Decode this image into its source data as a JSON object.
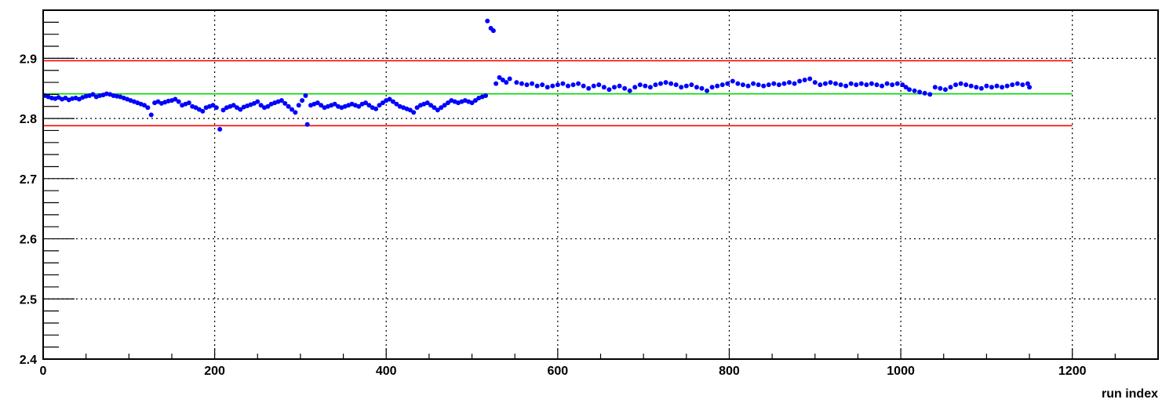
{
  "chart_data": {
    "type": "scatter",
    "title": "",
    "xlabel": "run index",
    "ylabel": "",
    "xlim": [
      0,
      1300
    ],
    "ylim": [
      2.4,
      2.98
    ],
    "x_ticks": [
      0,
      200,
      400,
      600,
      800,
      1000,
      1200
    ],
    "y_ticks": [
      2.4,
      2.5,
      2.6,
      2.7,
      2.8,
      2.9
    ],
    "y_tick_labels": [
      "2.4",
      "2.5",
      "2.6",
      "2.7",
      "2.8",
      "2.9"
    ],
    "x_tick_labels": [
      "0",
      "200",
      "400",
      "600",
      "800",
      "1000",
      "1200"
    ],
    "grid": true,
    "reference_lines": [
      {
        "y": 2.896,
        "x_range": [
          0,
          1200
        ],
        "color": "#ff0000"
      },
      {
        "y": 2.841,
        "x_range": [
          0,
          1200
        ],
        "color": "#00dd00"
      },
      {
        "y": 2.788,
        "x_range": [
          0,
          1200
        ],
        "color": "#ff0000"
      }
    ],
    "marker_color": "#0000ff",
    "series": [
      {
        "points": [
          [
            2,
            2.838
          ],
          [
            6,
            2.836
          ],
          [
            10,
            2.834
          ],
          [
            14,
            2.833
          ],
          [
            18,
            2.835
          ],
          [
            22,
            2.832
          ],
          [
            26,
            2.834
          ],
          [
            30,
            2.831
          ],
          [
            34,
            2.833
          ],
          [
            38,
            2.834
          ],
          [
            42,
            2.832
          ],
          [
            46,
            2.835
          ],
          [
            50,
            2.837
          ],
          [
            54,
            2.838
          ],
          [
            58,
            2.84
          ],
          [
            62,
            2.836
          ],
          [
            66,
            2.838
          ],
          [
            70,
            2.839
          ],
          [
            74,
            2.841
          ],
          [
            78,
            2.84
          ],
          [
            82,
            2.838
          ],
          [
            86,
            2.837
          ],
          [
            90,
            2.836
          ],
          [
            94,
            2.834
          ],
          [
            98,
            2.832
          ],
          [
            102,
            2.83
          ],
          [
            106,
            2.828
          ],
          [
            110,
            2.826
          ],
          [
            114,
            2.824
          ],
          [
            118,
            2.822
          ],
          [
            122,
            2.818
          ],
          [
            126,
            2.806
          ],
          [
            130,
            2.826
          ],
          [
            134,
            2.828
          ],
          [
            138,
            2.825
          ],
          [
            142,
            2.827
          ],
          [
            146,
            2.829
          ],
          [
            150,
            2.83
          ],
          [
            154,
            2.832
          ],
          [
            158,
            2.828
          ],
          [
            162,
            2.822
          ],
          [
            166,
            2.824
          ],
          [
            170,
            2.826
          ],
          [
            174,
            2.82
          ],
          [
            178,
            2.818
          ],
          [
            182,
            2.815
          ],
          [
            186,
            2.812
          ],
          [
            190,
            2.818
          ],
          [
            194,
            2.82
          ],
          [
            198,
            2.822
          ],
          [
            202,
            2.818
          ],
          [
            206,
            2.782
          ],
          [
            210,
            2.814
          ],
          [
            214,
            2.818
          ],
          [
            218,
            2.82
          ],
          [
            222,
            2.822
          ],
          [
            226,
            2.818
          ],
          [
            230,
            2.815
          ],
          [
            234,
            2.819
          ],
          [
            238,
            2.821
          ],
          [
            242,
            2.823
          ],
          [
            246,
            2.825
          ],
          [
            250,
            2.828
          ],
          [
            254,
            2.822
          ],
          [
            258,
            2.818
          ],
          [
            262,
            2.82
          ],
          [
            266,
            2.824
          ],
          [
            270,
            2.826
          ],
          [
            274,
            2.828
          ],
          [
            278,
            2.83
          ],
          [
            282,
            2.825
          ],
          [
            286,
            2.82
          ],
          [
            290,
            2.815
          ],
          [
            294,
            2.81
          ],
          [
            298,
            2.822
          ],
          [
            302,
            2.83
          ],
          [
            306,
            2.838
          ],
          [
            308,
            2.79
          ],
          [
            312,
            2.822
          ],
          [
            316,
            2.824
          ],
          [
            320,
            2.826
          ],
          [
            324,
            2.822
          ],
          [
            328,
            2.818
          ],
          [
            332,
            2.82
          ],
          [
            336,
            2.822
          ],
          [
            340,
            2.824
          ],
          [
            344,
            2.82
          ],
          [
            348,
            2.818
          ],
          [
            352,
            2.82
          ],
          [
            356,
            2.822
          ],
          [
            360,
            2.824
          ],
          [
            364,
            2.822
          ],
          [
            368,
            2.82
          ],
          [
            372,
            2.824
          ],
          [
            376,
            2.826
          ],
          [
            380,
            2.822
          ],
          [
            384,
            2.818
          ],
          [
            388,
            2.816
          ],
          [
            392,
            2.822
          ],
          [
            396,
            2.826
          ],
          [
            400,
            2.83
          ],
          [
            404,
            2.832
          ],
          [
            408,
            2.828
          ],
          [
            412,
            2.824
          ],
          [
            416,
            2.82
          ],
          [
            420,
            2.818
          ],
          [
            424,
            2.816
          ],
          [
            428,
            2.814
          ],
          [
            432,
            2.81
          ],
          [
            436,
            2.818
          ],
          [
            440,
            2.822
          ],
          [
            444,
            2.824
          ],
          [
            448,
            2.826
          ],
          [
            452,
            2.822
          ],
          [
            456,
            2.818
          ],
          [
            460,
            2.814
          ],
          [
            464,
            2.818
          ],
          [
            468,
            2.822
          ],
          [
            472,
            2.826
          ],
          [
            476,
            2.83
          ],
          [
            480,
            2.828
          ],
          [
            484,
            2.826
          ],
          [
            488,
            2.828
          ],
          [
            492,
            2.83
          ],
          [
            496,
            2.828
          ],
          [
            500,
            2.826
          ],
          [
            504,
            2.83
          ],
          [
            508,
            2.834
          ],
          [
            512,
            2.836
          ],
          [
            516,
            2.838
          ],
          [
            518,
            2.962
          ],
          [
            522,
            2.95
          ],
          [
            525,
            2.946
          ],
          [
            528,
            2.858
          ],
          [
            532,
            2.868
          ],
          [
            536,
            2.864
          ],
          [
            540,
            2.86
          ],
          [
            544,
            2.866
          ],
          [
            552,
            2.86
          ],
          [
            558,
            2.858
          ],
          [
            564,
            2.856
          ],
          [
            570,
            2.858
          ],
          [
            576,
            2.854
          ],
          [
            582,
            2.856
          ],
          [
            588,
            2.852
          ],
          [
            594,
            2.854
          ],
          [
            600,
            2.856
          ],
          [
            606,
            2.858
          ],
          [
            612,
            2.854
          ],
          [
            618,
            2.856
          ],
          [
            624,
            2.858
          ],
          [
            630,
            2.854
          ],
          [
            636,
            2.85
          ],
          [
            642,
            2.854
          ],
          [
            648,
            2.856
          ],
          [
            654,
            2.852
          ],
          [
            660,
            2.848
          ],
          [
            666,
            2.852
          ],
          [
            672,
            2.854
          ],
          [
            678,
            2.85
          ],
          [
            684,
            2.846
          ],
          [
            690,
            2.852
          ],
          [
            696,
            2.856
          ],
          [
            702,
            2.854
          ],
          [
            708,
            2.852
          ],
          [
            714,
            2.856
          ],
          [
            720,
            2.858
          ],
          [
            726,
            2.86
          ],
          [
            732,
            2.858
          ],
          [
            738,
            2.856
          ],
          [
            744,
            2.852
          ],
          [
            750,
            2.854
          ],
          [
            756,
            2.856
          ],
          [
            762,
            2.852
          ],
          [
            768,
            2.85
          ],
          [
            774,
            2.846
          ],
          [
            780,
            2.852
          ],
          [
            786,
            2.854
          ],
          [
            792,
            2.856
          ],
          [
            798,
            2.858
          ],
          [
            804,
            2.862
          ],
          [
            810,
            2.858
          ],
          [
            816,
            2.856
          ],
          [
            822,
            2.854
          ],
          [
            828,
            2.858
          ],
          [
            834,
            2.856
          ],
          [
            840,
            2.854
          ],
          [
            846,
            2.856
          ],
          [
            852,
            2.858
          ],
          [
            858,
            2.856
          ],
          [
            864,
            2.858
          ],
          [
            870,
            2.86
          ],
          [
            876,
            2.858
          ],
          [
            882,
            2.862
          ],
          [
            888,
            2.864
          ],
          [
            894,
            2.866
          ],
          [
            900,
            2.86
          ],
          [
            906,
            2.856
          ],
          [
            912,
            2.858
          ],
          [
            918,
            2.86
          ],
          [
            924,
            2.858
          ],
          [
            930,
            2.856
          ],
          [
            936,
            2.854
          ],
          [
            942,
            2.858
          ],
          [
            948,
            2.856
          ],
          [
            954,
            2.858
          ],
          [
            960,
            2.856
          ],
          [
            966,
            2.858
          ],
          [
            972,
            2.856
          ],
          [
            978,
            2.854
          ],
          [
            984,
            2.858
          ],
          [
            990,
            2.856
          ],
          [
            996,
            2.858
          ],
          [
            1002,
            2.856
          ],
          [
            1006,
            2.852
          ],
          [
            1010,
            2.848
          ],
          [
            1016,
            2.846
          ],
          [
            1022,
            2.844
          ],
          [
            1028,
            2.842
          ],
          [
            1034,
            2.84
          ],
          [
            1040,
            2.852
          ],
          [
            1046,
            2.85
          ],
          [
            1052,
            2.848
          ],
          [
            1058,
            2.852
          ],
          [
            1064,
            2.856
          ],
          [
            1070,
            2.858
          ],
          [
            1076,
            2.856
          ],
          [
            1082,
            2.854
          ],
          [
            1088,
            2.852
          ],
          [
            1094,
            2.85
          ],
          [
            1100,
            2.854
          ],
          [
            1106,
            2.852
          ],
          [
            1112,
            2.854
          ],
          [
            1118,
            2.852
          ],
          [
            1124,
            2.854
          ],
          [
            1130,
            2.856
          ],
          [
            1136,
            2.858
          ],
          [
            1142,
            2.856
          ],
          [
            1148,
            2.858
          ],
          [
            1150,
            2.852
          ]
        ]
      }
    ]
  }
}
